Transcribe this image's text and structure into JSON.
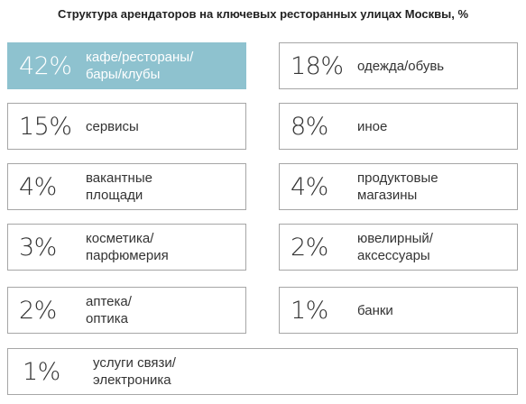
{
  "colors": {
    "highlight_fill": "#8ec2cf",
    "tile_border": "#a6a6a6",
    "text": "#333333"
  },
  "chart_data": {
    "type": "table",
    "title": "Структура арендаторов на ключевых ресторанных улицах Москвы, %",
    "unit": "%",
    "items": [
      {
        "label": "42%",
        "value": 42,
        "category": "кафе/рестораны/\nбары/клубы",
        "highlight": true
      },
      {
        "label": "18%",
        "value": 18,
        "category": "одежда/обувь"
      },
      {
        "label": "15%",
        "value": 15,
        "category": "сервисы"
      },
      {
        "label": "8%",
        "value": 8,
        "category": "иное"
      },
      {
        "label": "4%",
        "value": 4,
        "category": "вакантные\nплощади"
      },
      {
        "label": "4%",
        "value": 4,
        "category": "продуктовые\nмагазины"
      },
      {
        "label": "3%",
        "value": 3,
        "category": "косметика/\nпарфюмерия"
      },
      {
        "label": "2%",
        "value": 2,
        "category": "ювелирный/\nаксессуары"
      },
      {
        "label": "2%",
        "value": 2,
        "category": "аптека/\nоптика"
      },
      {
        "label": "1%",
        "value": 1,
        "category": "банки"
      },
      {
        "label": "1%",
        "value": 1,
        "category": "услуги связи/\nэлектроника"
      }
    ]
  }
}
